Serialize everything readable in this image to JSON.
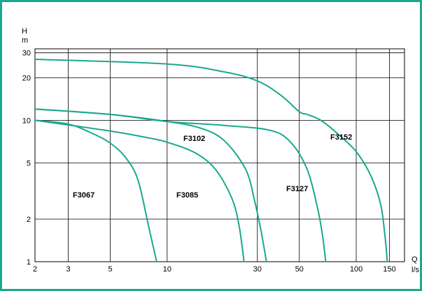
{
  "chart_data": {
    "type": "line",
    "title": "",
    "x_axis": {
      "label": "Q",
      "unit": "l/s",
      "scale": "log",
      "ticks": [
        "2",
        "3",
        "5",
        "10",
        "30",
        "50",
        "100",
        "150"
      ],
      "range": [
        2,
        180
      ]
    },
    "y_axis": {
      "label": "H",
      "unit": "m",
      "scale": "log",
      "ticks": [
        "1",
        "2",
        "5",
        "10",
        "20",
        "30"
      ],
      "range": [
        1,
        32
      ]
    },
    "grid": true,
    "legend": "none",
    "series": [
      {
        "name": "F3067",
        "points": [
          [
            2,
            10
          ],
          [
            3,
            9.4
          ],
          [
            4,
            8.1
          ],
          [
            5,
            6.9
          ],
          [
            6,
            5.5
          ],
          [
            7,
            3.8
          ],
          [
            8,
            1.75
          ],
          [
            8.8,
            1
          ]
        ]
      },
      {
        "name": "F3085",
        "points": [
          [
            2,
            10
          ],
          [
            5,
            8.4
          ],
          [
            8,
            7.5
          ],
          [
            10,
            7.0
          ],
          [
            14,
            5.9
          ],
          [
            18,
            4.5
          ],
          [
            22,
            2.8
          ],
          [
            24,
            1.8
          ],
          [
            25.5,
            1
          ]
        ]
      },
      {
        "name": "F3102",
        "points": [
          [
            2,
            12
          ],
          [
            5,
            11
          ],
          [
            10,
            9.8
          ],
          [
            15,
            8.8
          ],
          [
            20,
            7.2
          ],
          [
            26,
            4.5
          ],
          [
            29,
            2.7
          ],
          [
            31.5,
            1.6
          ],
          [
            33.5,
            1
          ]
        ]
      },
      {
        "name": "F3127",
        "points": [
          [
            2,
            12
          ],
          [
            5,
            11
          ],
          [
            10,
            9.8
          ],
          [
            20,
            9.2
          ],
          [
            35,
            8.5
          ],
          [
            45,
            7.0
          ],
          [
            55,
            4.5
          ],
          [
            62,
            2.5
          ],
          [
            66,
            1.6
          ],
          [
            69,
            1
          ]
        ]
      },
      {
        "name": "F3152",
        "points": [
          [
            2,
            27
          ],
          [
            10,
            25
          ],
          [
            20,
            22
          ],
          [
            30,
            19
          ],
          [
            40,
            15
          ],
          [
            50,
            11.5
          ],
          [
            55,
            11
          ],
          [
            65,
            10
          ],
          [
            80,
            8
          ],
          [
            100,
            6
          ],
          [
            120,
            4
          ],
          [
            135,
            2.5
          ],
          [
            142,
            1.5
          ],
          [
            146,
            1
          ]
        ]
      }
    ],
    "curve_labels": [
      "F3067",
      "F3085",
      "F3102",
      "F3127",
      "F3152"
    ],
    "colors": {
      "curve": "#1aa88e",
      "frame": "#1aa88e",
      "grid": "#000000"
    }
  }
}
